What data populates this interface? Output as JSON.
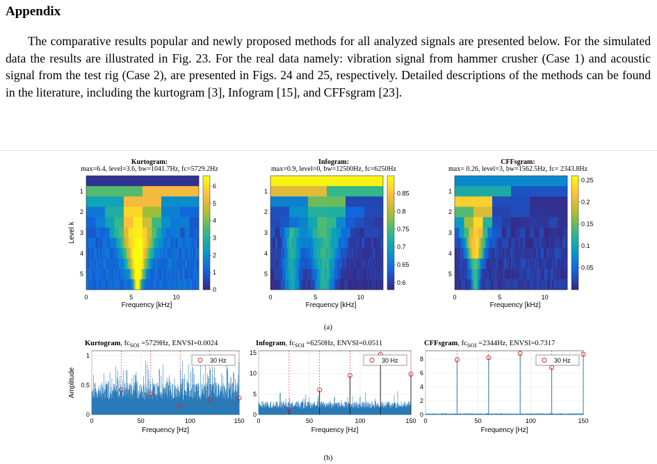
{
  "heading": "Appendix",
  "paragraph": "The comparative results popular and newly proposed methods for all analyzed signals are presented below. For the simulated data the results are illustrated in Fig. 23. For the real data namely: vibration signal from hammer crusher (Case 1) and acoustic signal from the test rig (Case 2), are presented in Figs. 24 and 25, respectively. Detailed descriptions of the methods can be found in the literature, including the kurtogram [3], Infogram [15], and CFFsgram [23].",
  "captions": {
    "a": "(a)",
    "b": "(b)"
  },
  "chart_data": [
    {
      "type": "heatmap",
      "title": "Kurtogram:",
      "subtitle": "max=6.4, level=3.6, bw=1041.7Hz, fc=5729.2Hz",
      "xlabel": "Frequency [kHz]",
      "ylabel": "Level k",
      "xticks": [
        "0",
        "5",
        "10"
      ],
      "yticks": [
        "1",
        "2",
        "3",
        "4",
        "5"
      ],
      "colorbar_ticks": [
        "0",
        "1",
        "2",
        "3",
        "4",
        "5",
        "6"
      ],
      "colorbar_range": [
        0,
        6.6
      ],
      "peak_frequency_khz": 5.7
    },
    {
      "type": "heatmap",
      "title": "Infogram:",
      "subtitle": "max=0.9, level=0, bw=12500Hz, fc=6250Hz",
      "xlabel": "Frequency [kHz]",
      "ylabel": "",
      "xticks": [
        "0",
        "5",
        "10"
      ],
      "yticks": [
        "1",
        "2",
        "3",
        "4",
        "5"
      ],
      "colorbar_ticks": [
        "0.6",
        "0.65",
        "0.7",
        "0.75",
        "0.8",
        "0.85"
      ],
      "colorbar_range": [
        0.58,
        0.9
      ],
      "peak_frequency_khz": 6.25
    },
    {
      "type": "heatmap",
      "title": "CFFsgram:",
      "subtitle": "max= 0.26, level=3, bw=1562.5Hz, fc= 2343.8Hz",
      "xlabel": "Frequency [kHz]",
      "ylabel": "",
      "xticks": [
        "0",
        "5",
        "10"
      ],
      "yticks": [
        "1",
        "2",
        "3",
        "4",
        "5"
      ],
      "colorbar_ticks": [
        "0.05",
        "0.1",
        "0.15",
        "0.2",
        "0.25"
      ],
      "colorbar_range": [
        0,
        0.26
      ],
      "peak_frequency_khz": 2.34
    },
    {
      "type": "line",
      "title": {
        "method": "Kurtogram",
        "fc": ", fc",
        "sub": "SOI",
        "rest": " =5729Hz, ENVSI=0.0024"
      },
      "xlabel": "Frequency [Hz]",
      "ylabel": "Amplitude",
      "xlim": [
        0,
        150
      ],
      "ylim": [
        0,
        1.08
      ],
      "xticks": [
        "0",
        "50",
        "100",
        "150"
      ],
      "yticks": [
        "0",
        "0.5",
        "1"
      ],
      "ytick_values": [
        0,
        0.5,
        1
      ],
      "legend": "30 Hz",
      "markers": [
        {
          "x": 30,
          "y": 0.42
        },
        {
          "x": 60,
          "y": 0.35
        },
        {
          "x": 90,
          "y": 0.15
        },
        {
          "x": 120,
          "y": 0.25
        },
        {
          "x": 150,
          "y": 0.28
        }
      ]
    },
    {
      "type": "line",
      "title": {
        "method": "Infogram",
        "fc": ", fc",
        "sub": "SOI",
        "rest": " =6250Hz, ENVSI=0.0511"
      },
      "xlabel": "Frequency [Hz]",
      "ylabel": "",
      "xlim": [
        0,
        150
      ],
      "ylim": [
        0,
        15.5
      ],
      "xticks": [
        "0",
        "50",
        "100",
        "150"
      ],
      "yticks": [
        "0",
        "5",
        "10",
        "15"
      ],
      "ytick_values": [
        0,
        5,
        10,
        15
      ],
      "legend": "30 Hz",
      "markers": [
        {
          "x": 30,
          "y": 1.2
        },
        {
          "x": 60,
          "y": 6.0
        },
        {
          "x": 90,
          "y": 9.5
        },
        {
          "x": 120,
          "y": 14.6
        },
        {
          "x": 150,
          "y": 9.8
        }
      ]
    },
    {
      "type": "line",
      "title": {
        "method": "CFFsgram",
        "fc": ", fc",
        "sub": "SOI",
        "rest": " =2344Hz, ENVSI=0.7317"
      },
      "xlabel": "Frequency [Hz]",
      "ylabel": "",
      "xlim": [
        0,
        150
      ],
      "ylim": [
        0,
        9.2
      ],
      "xticks": [
        "0",
        "50",
        "100",
        "150"
      ],
      "yticks": [
        "0",
        "2",
        "4",
        "6",
        "8"
      ],
      "ytick_values": [
        0,
        2,
        4,
        6,
        8
      ],
      "legend": "30 Hz",
      "markers": [
        {
          "x": 30,
          "y": 7.9
        },
        {
          "x": 60,
          "y": 8.2
        },
        {
          "x": 90,
          "y": 8.8
        },
        {
          "x": 120,
          "y": 6.8
        },
        {
          "x": 150,
          "y": 8.7
        }
      ]
    }
  ]
}
